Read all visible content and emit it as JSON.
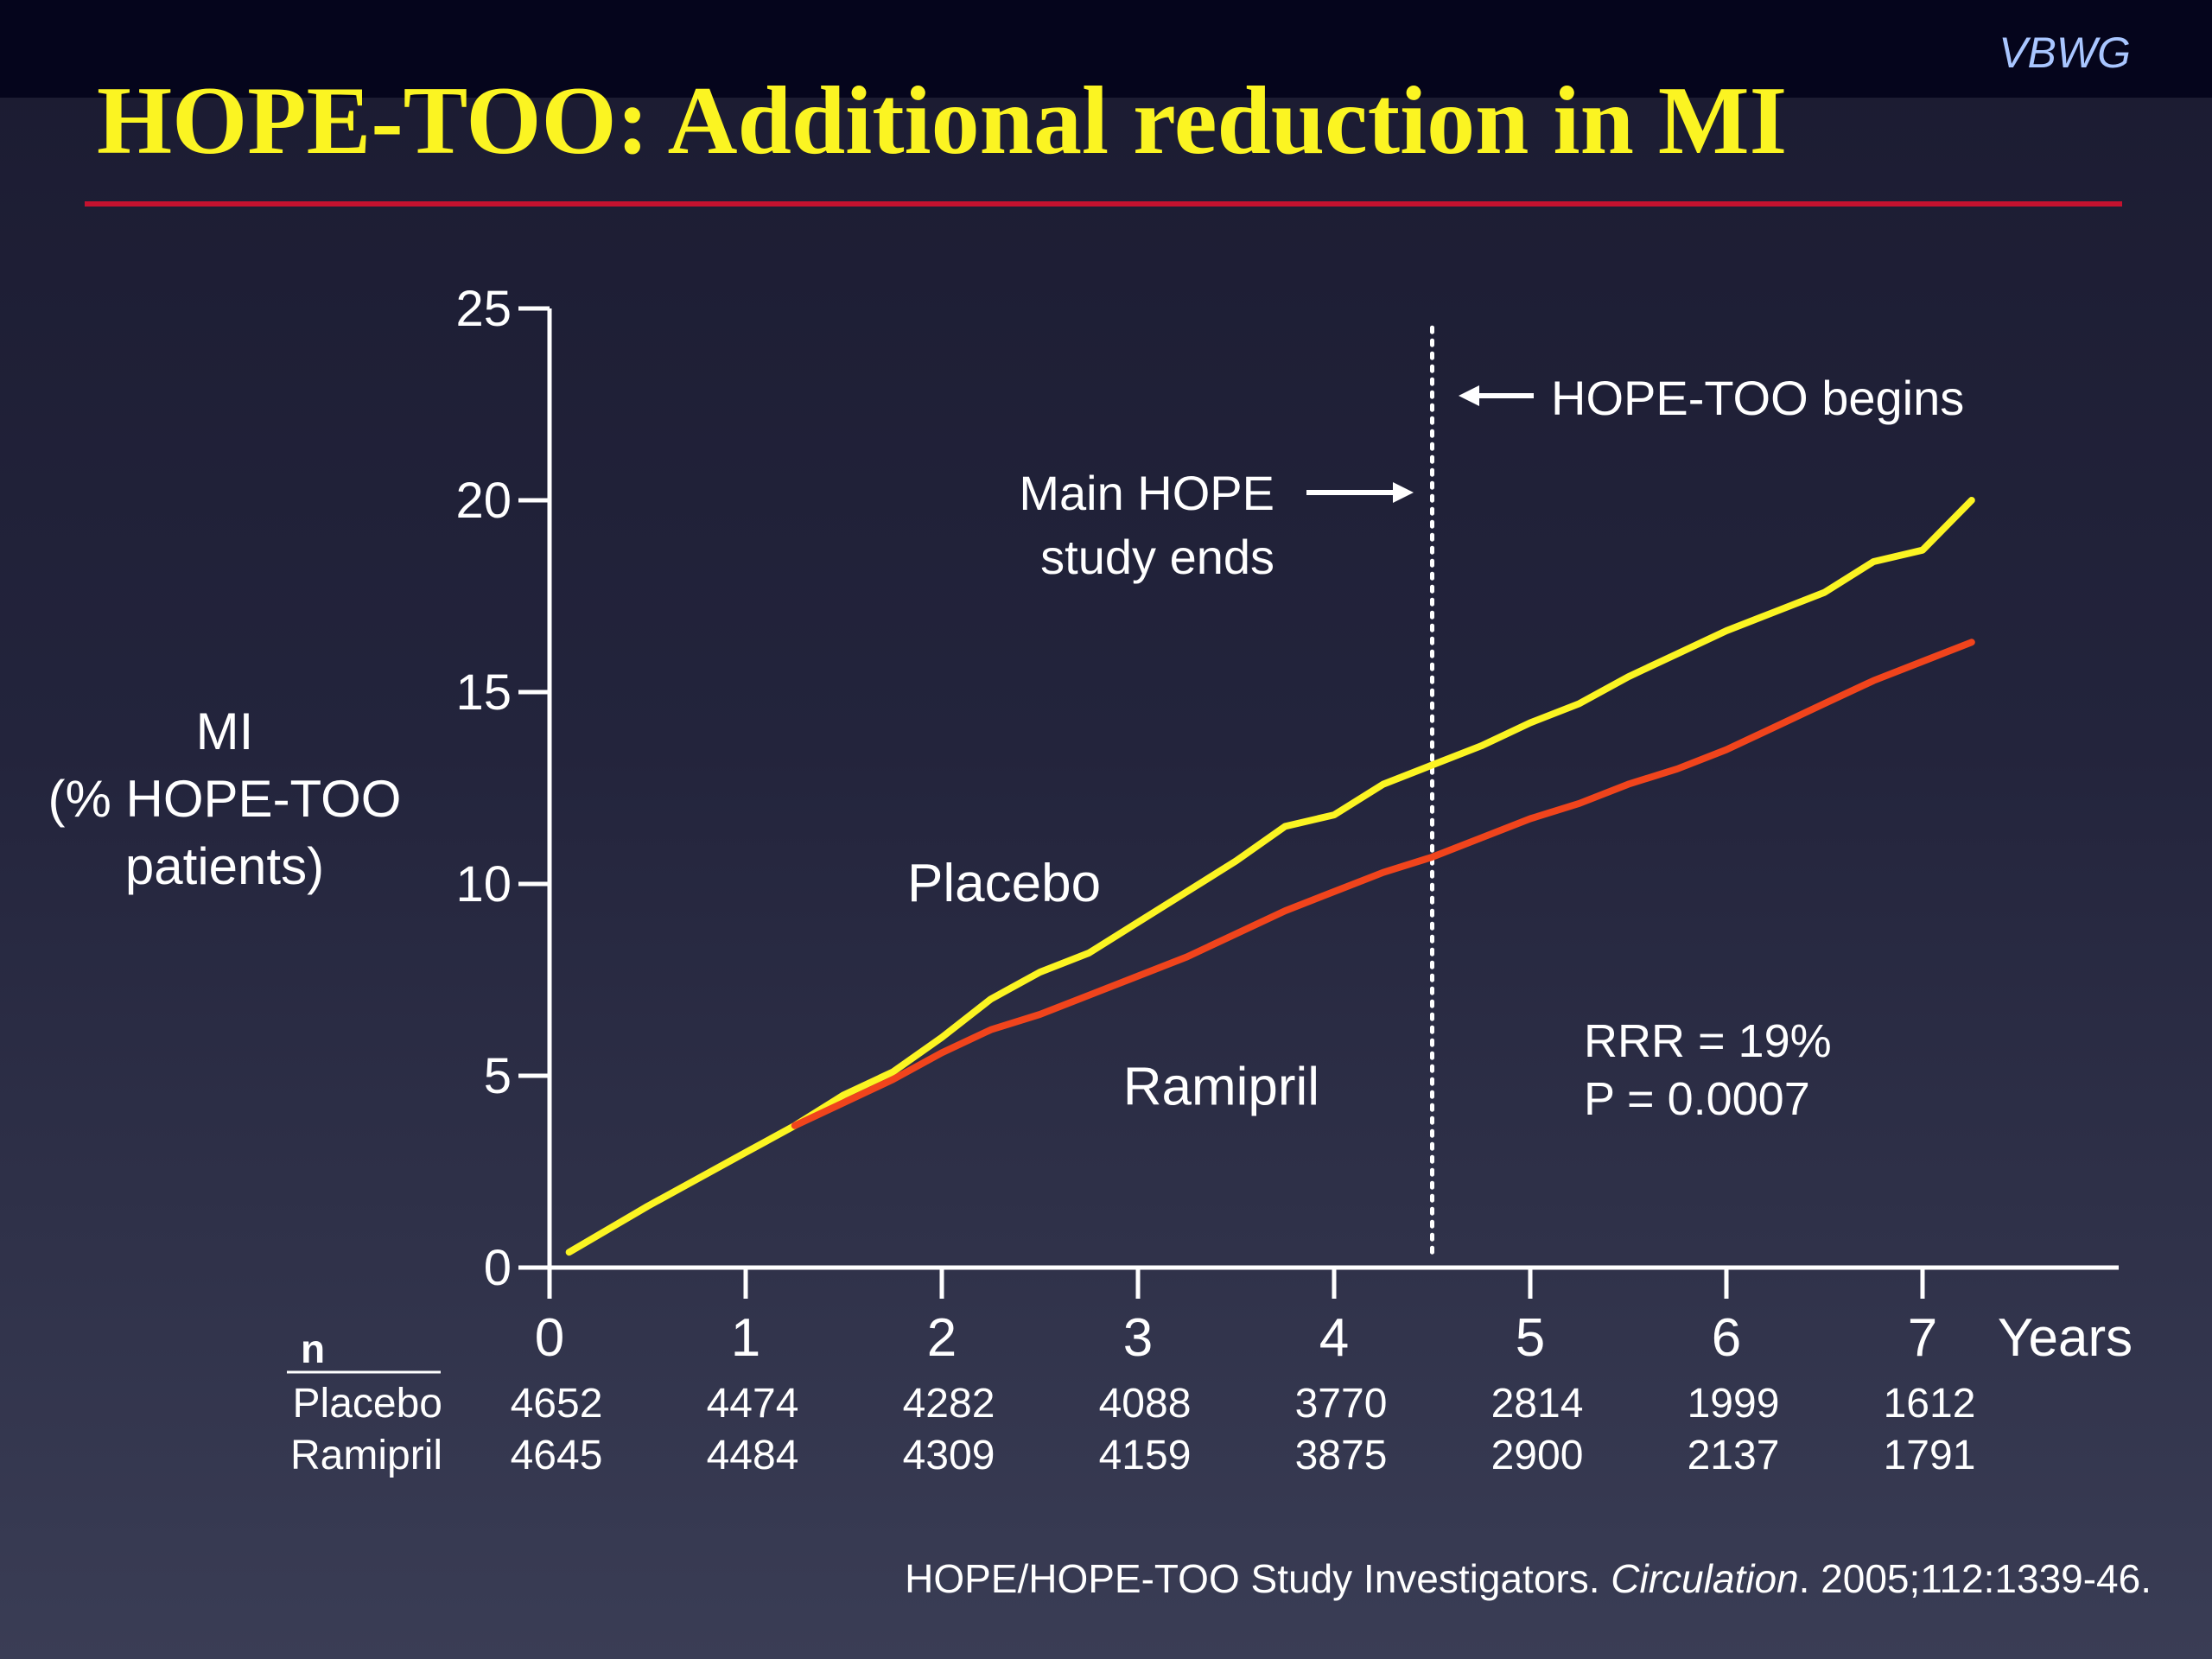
{
  "brand": "VBWG",
  "title": "HOPE-TOO: Additional reduction in MI",
  "colors": {
    "title": "#fbf422",
    "rule": "#c4122f",
    "placebo": "#fbf422",
    "ramipril": "#f0441c",
    "brand": "#a9c6ff"
  },
  "chart_data": {
    "type": "line",
    "ylabel": [
      "MI",
      "(% HOPE-TOO",
      "patients)"
    ],
    "xlabel": "Years",
    "xlim": [
      0,
      8.1
    ],
    "ylim": [
      0,
      25
    ],
    "x_ticks": [
      "0",
      "1",
      "2",
      "3",
      "4",
      "5",
      "6",
      "7"
    ],
    "y_ticks": [
      "0",
      "5",
      "10",
      "15",
      "20",
      "25"
    ],
    "series": [
      {
        "name": "Placebo",
        "color": "#fbf422",
        "x": [
          0.1,
          0.5,
          0.75,
          1.0,
          1.25,
          1.5,
          1.75,
          2.0,
          2.25,
          2.5,
          2.75,
          3.0,
          3.25,
          3.5,
          3.75,
          4.0,
          4.25,
          4.5,
          4.75,
          5.0,
          5.25,
          5.5,
          5.75,
          6.0,
          6.25,
          6.5,
          6.75,
          7.0,
          7.25
        ],
        "y": [
          0.4,
          1.6,
          2.3,
          3.0,
          3.7,
          4.5,
          5.1,
          6.0,
          7.0,
          7.7,
          8.2,
          9.0,
          9.8,
          10.6,
          11.5,
          11.8,
          12.6,
          13.1,
          13.6,
          14.2,
          14.7,
          15.4,
          16.0,
          16.6,
          17.1,
          17.6,
          18.4,
          18.7,
          20.0
        ]
      },
      {
        "name": "Ramipril",
        "color": "#f0441c",
        "x": [
          1.25,
          1.5,
          1.75,
          2.0,
          2.25,
          2.5,
          2.75,
          3.0,
          3.25,
          3.5,
          3.75,
          4.0,
          4.25,
          4.5,
          4.75,
          5.0,
          5.25,
          5.5,
          5.75,
          6.0,
          6.25,
          6.5,
          6.75,
          7.0,
          7.25
        ],
        "y": [
          3.7,
          4.3,
          4.9,
          5.6,
          6.2,
          6.6,
          7.1,
          7.6,
          8.1,
          8.7,
          9.3,
          9.8,
          10.3,
          10.7,
          11.2,
          11.7,
          12.1,
          12.6,
          13.0,
          13.5,
          14.1,
          14.7,
          15.3,
          15.8,
          16.3
        ]
      }
    ],
    "series_labels": [
      {
        "text": "Placebo",
        "x": 2.0,
        "y": 10.0
      },
      {
        "text": "Ramipril",
        "x": 3.1,
        "y": 4.7
      }
    ],
    "vline": {
      "x": 4.5,
      "style": "dotted"
    },
    "annotations": {
      "begins": "HOPE-TOO begins",
      "ends_line1": "Main HOPE",
      "ends_line2": "study ends",
      "rrr": "RRR = 19%",
      "p": "P = 0.0007"
    },
    "n_table": {
      "header": "n",
      "rows": [
        {
          "label": "Placebo",
          "values": [
            "4652",
            "4474",
            "4282",
            "4088",
            "3770",
            "2814",
            "1999",
            "1612"
          ]
        },
        {
          "label": "Ramipril",
          "values": [
            "4645",
            "4484",
            "4309",
            "4159",
            "3875",
            "2900",
            "2137",
            "1791"
          ]
        }
      ]
    }
  },
  "citation": {
    "pre": "HOPE/HOPE-TOO Study Investigators. ",
    "journal": "Circulation",
    "post": ". 2005;112:1339-46."
  }
}
